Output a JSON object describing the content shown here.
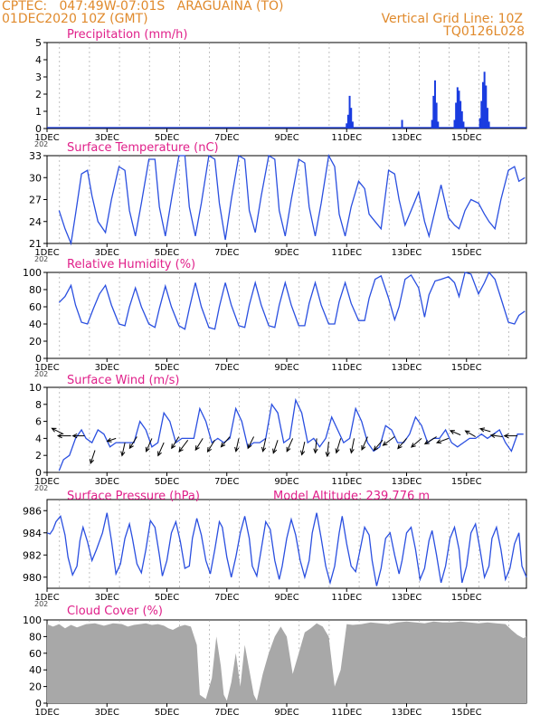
{
  "header": {
    "line1": "CPTEC:   047:49W-07:01S   ARAGUAINA (TO)",
    "line2": "01DEC2020 10Z (GMT)",
    "grid_note": "Vertical Grid Line: 10Z",
    "code": "TQ0126L028"
  },
  "colors": {
    "header": "#e08a2c",
    "title": "#e0208a",
    "line": "#2a4fe0",
    "bar": "#1a3ce0",
    "cloud": "#a8a8a8",
    "arrow": "#000000"
  },
  "x_axis": {
    "tick_labels": [
      "1DEC",
      "3DEC",
      "5DEC",
      "7DEC",
      "9DEC",
      "11DEC",
      "13DEC",
      "15DEC"
    ],
    "year_stub": "202"
  },
  "chart_data": [
    {
      "id": "precip",
      "type": "bar",
      "title": "Precipitation (mm/h)",
      "xlabel": "",
      "ylabel": "",
      "ylim": [
        0,
        5
      ],
      "yticks": [
        0,
        1,
        2,
        3,
        4,
        5
      ],
      "x_unit": "days since 01DEC 00Z",
      "x": [
        10.0,
        10.05,
        10.1,
        10.15,
        10.2,
        11.85,
        12.85,
        12.9,
        12.95,
        13.0,
        13.05,
        13.6,
        13.65,
        13.7,
        13.75,
        13.8,
        13.85,
        13.9,
        14.45,
        14.5,
        14.55,
        14.6,
        14.65,
        14.7,
        14.75
      ],
      "values": [
        0.3,
        0.8,
        1.9,
        1.2,
        0.4,
        0.5,
        0.5,
        1.9,
        2.8,
        1.5,
        0.4,
        0.5,
        1.5,
        2.4,
        2.2,
        1.6,
        1.0,
        0.4,
        0.6,
        1.6,
        2.7,
        3.3,
        2.5,
        1.2,
        0.4
      ]
    },
    {
      "id": "temp",
      "type": "line",
      "title": "Surface Temperature (nC)",
      "xlabel": "",
      "ylabel": "",
      "ylim": [
        21,
        33
      ],
      "yticks": [
        21,
        24,
        27,
        30,
        33
      ],
      "x_unit": "days since 01DEC 00Z",
      "x": [
        0.4,
        0.6,
        0.8,
        0.95,
        1.15,
        1.35,
        1.5,
        1.7,
        1.95,
        2.15,
        2.4,
        2.6,
        2.75,
        2.95,
        3.15,
        3.4,
        3.6,
        3.75,
        3.95,
        4.15,
        4.4,
        4.6,
        4.75,
        4.95,
        5.15,
        5.4,
        5.6,
        5.75,
        5.95,
        6.15,
        6.4,
        6.6,
        6.75,
        6.95,
        7.15,
        7.4,
        7.6,
        7.75,
        7.95,
        8.15,
        8.4,
        8.6,
        8.75,
        8.95,
        9.15,
        9.4,
        9.6,
        9.75,
        9.95,
        10.15,
        10.4,
        10.6,
        10.75,
        10.95,
        11.15,
        11.4,
        11.6,
        11.75,
        11.95,
        12.15,
        12.4,
        12.6,
        12.75,
        12.95,
        13.15,
        13.4,
        13.6,
        13.75,
        13.95,
        14.15,
        14.4,
        14.6,
        14.75,
        14.95,
        15.15,
        15.4,
        15.6,
        15.75,
        15.95
      ],
      "values": [
        25.5,
        23.0,
        21.0,
        25.0,
        30.5,
        31.0,
        27.5,
        24.0,
        22.5,
        27.0,
        31.5,
        31.0,
        25.5,
        22.0,
        26.5,
        32.5,
        32.5,
        26.0,
        22.0,
        27.0,
        33.0,
        33.0,
        26.0,
        22.0,
        26.5,
        33.0,
        32.5,
        26.5,
        21.5,
        27.0,
        33.0,
        32.5,
        25.5,
        22.5,
        27.5,
        33.0,
        32.5,
        25.5,
        22.0,
        27.0,
        32.5,
        32.0,
        26.0,
        22.0,
        26.5,
        33.0,
        31.5,
        25.0,
        22.0,
        26.0,
        29.5,
        28.5,
        25.0,
        24.0,
        23.0,
        31.0,
        30.5,
        27.0,
        23.5,
        25.5,
        28.0,
        24.0,
        22.0,
        25.5,
        29.0,
        24.5,
        23.5,
        23.0,
        25.5,
        27.0,
        26.5,
        25.0,
        24.0,
        23.0,
        27.0,
        31.0,
        31.5,
        29.5,
        30.0
      ]
    },
    {
      "id": "rh",
      "type": "line",
      "title": "Relative Humidity (%)",
      "xlabel": "",
      "ylabel": "",
      "ylim": [
        0,
        100
      ],
      "yticks": [
        0,
        20,
        40,
        60,
        80,
        100
      ],
      "x_unit": "days since 01DEC 00Z",
      "x": [
        0.4,
        0.6,
        0.8,
        0.95,
        1.15,
        1.35,
        1.55,
        1.75,
        1.95,
        2.15,
        2.4,
        2.6,
        2.75,
        2.95,
        3.15,
        3.4,
        3.6,
        3.75,
        3.95,
        4.15,
        4.4,
        4.6,
        4.75,
        4.95,
        5.15,
        5.4,
        5.6,
        5.75,
        5.95,
        6.15,
        6.4,
        6.6,
        6.75,
        6.95,
        7.15,
        7.4,
        7.6,
        7.75,
        7.95,
        8.15,
        8.4,
        8.6,
        8.75,
        8.95,
        9.15,
        9.4,
        9.6,
        9.75,
        9.95,
        10.15,
        10.4,
        10.6,
        10.75,
        10.95,
        11.15,
        11.4,
        11.6,
        11.75,
        11.95,
        12.15,
        12.4,
        12.6,
        12.75,
        12.95,
        13.15,
        13.4,
        13.6,
        13.75,
        13.95,
        14.15,
        14.4,
        14.6,
        14.75,
        14.95,
        15.15,
        15.4,
        15.6,
        15.75,
        15.95
      ],
      "values": [
        65,
        72,
        85,
        62,
        42,
        40,
        58,
        75,
        85,
        62,
        40,
        38,
        60,
        82,
        60,
        40,
        36,
        58,
        84,
        60,
        38,
        34,
        58,
        88,
        60,
        36,
        34,
        60,
        88,
        62,
        38,
        36,
        62,
        88,
        62,
        38,
        36,
        62,
        88,
        62,
        38,
        38,
        64,
        88,
        62,
        40,
        40,
        66,
        88,
        64,
        44,
        44,
        70,
        92,
        96,
        70,
        45,
        60,
        92,
        97,
        82,
        48,
        74,
        90,
        92,
        95,
        88,
        72,
        100,
        98,
        75,
        88,
        100,
        92,
        70,
        42,
        40,
        50,
        55
      ]
    },
    {
      "id": "wind",
      "type": "line",
      "title": "Surface Wind (m/s)",
      "xlabel": "",
      "ylabel": "",
      "ylim": [
        0,
        10
      ],
      "yticks": [
        0,
        2,
        4,
        6,
        8,
        10
      ],
      "x_unit": "days since 01DEC 00Z",
      "x": [
        0.4,
        0.55,
        0.75,
        0.95,
        1.15,
        1.3,
        1.5,
        1.7,
        1.9,
        2.1,
        2.3,
        2.5,
        2.7,
        2.9,
        3.1,
        3.3,
        3.5,
        3.7,
        3.9,
        4.1,
        4.3,
        4.5,
        4.7,
        4.9,
        5.1,
        5.3,
        5.5,
        5.7,
        5.9,
        6.1,
        6.3,
        6.5,
        6.7,
        6.9,
        7.1,
        7.3,
        7.5,
        7.7,
        7.9,
        8.1,
        8.3,
        8.5,
        8.7,
        8.9,
        9.1,
        9.3,
        9.5,
        9.7,
        9.9,
        10.1,
        10.3,
        10.5,
        10.7,
        10.9,
        11.1,
        11.3,
        11.5,
        11.7,
        11.9,
        12.1,
        12.3,
        12.5,
        12.7,
        12.9,
        13.1,
        13.3,
        13.5,
        13.7,
        13.9,
        14.1,
        14.3,
        14.5,
        14.7,
        14.9,
        15.1,
        15.3,
        15.5,
        15.7,
        15.9
      ],
      "values": [
        0.2,
        1.5,
        2.0,
        4.0,
        5.0,
        4.0,
        3.5,
        5.0,
        4.5,
        3.0,
        3.5,
        3.5,
        3.5,
        3.5,
        6.0,
        5.0,
        3.0,
        3.5,
        7.0,
        6.0,
        3.5,
        4.0,
        4.0,
        4.0,
        7.5,
        6.0,
        3.5,
        4.0,
        3.5,
        4.0,
        7.5,
        6.0,
        3.0,
        3.5,
        3.5,
        4.0,
        8.0,
        7.0,
        3.5,
        4.0,
        8.5,
        7.0,
        3.5,
        4.0,
        3.0,
        4.0,
        6.5,
        5.0,
        3.5,
        4.0,
        7.5,
        6.0,
        3.5,
        2.5,
        3.0,
        5.5,
        5.0,
        3.5,
        3.5,
        4.5,
        6.5,
        5.5,
        3.5,
        4.0,
        4.0,
        5.0,
        3.5,
        3.0,
        3.5,
        4.0,
        4.0,
        4.5,
        4.0,
        4.5,
        5.0,
        3.5,
        2.5,
        4.5,
        4.5
      ],
      "arrows": {
        "x": [
          0.55,
          0.8,
          1.25,
          1.6,
          2.3,
          2.6,
          3.0,
          3.5,
          3.9,
          4.4,
          4.7,
          5.2,
          5.6,
          6.1,
          6.4,
          6.9,
          7.3,
          7.7,
          8.2,
          8.6,
          9.0,
          9.4,
          9.8,
          10.25,
          10.7,
          11.2,
          11.6,
          12.0,
          12.5,
          13.0,
          13.4,
          13.8,
          14.3,
          14.8,
          15.2,
          15.7
        ],
        "y": [
          4.5,
          4.3,
          4.3,
          2.6,
          4.0,
          3.5,
          4.2,
          4.0,
          3.5,
          4.2,
          3.8,
          4.0,
          3.8,
          4.2,
          4.0,
          4.2,
          4.0,
          3.8,
          4.0,
          3.6,
          4.0,
          3.6,
          4.0,
          4.0,
          4.2,
          3.8,
          4.2,
          4.0,
          4.0,
          4.2,
          4.0,
          4.4,
          4.2,
          4.8,
          4.2,
          4.3
        ],
        "u": [
          -0.8,
          -0.9,
          -0.8,
          -0.3,
          -0.6,
          -0.2,
          -0.5,
          -0.4,
          -0.4,
          -0.5,
          -0.6,
          -0.5,
          -0.5,
          -0.6,
          -0.2,
          -0.4,
          -0.2,
          -0.3,
          -0.4,
          -0.2,
          -0.1,
          -0.1,
          -0.3,
          -0.2,
          -0.4,
          -0.6,
          -0.8,
          -0.6,
          -0.7,
          -0.8,
          -0.8,
          -0.7,
          -0.7,
          -0.7,
          -0.8,
          -0.9
        ],
        "v": [
          0.4,
          0.0,
          0.0,
          -0.9,
          -0.2,
          -0.9,
          -0.8,
          -0.9,
          -0.9,
          -0.8,
          -0.8,
          -0.8,
          -0.8,
          -0.7,
          -0.9,
          -0.8,
          -0.9,
          -0.9,
          -0.9,
          -0.9,
          -1.0,
          -1.0,
          -1.0,
          -1.0,
          -0.9,
          -0.7,
          -0.6,
          -0.7,
          -0.6,
          -0.5,
          -0.3,
          0.3,
          0.4,
          0.2,
          0.1,
          0.0
        ]
      }
    },
    {
      "id": "press",
      "type": "line",
      "title": "Surface Pressure (hPa)",
      "subtitle": "Model Altitude: 239.776  m",
      "xlabel": "",
      "ylabel": "",
      "ylim": [
        979,
        987
      ],
      "yticks": [
        980,
        982,
        984,
        986
      ],
      "x_unit": "days since 01DEC 00Z",
      "x": [
        0.0,
        0.1,
        0.2,
        0.3,
        0.45,
        0.6,
        0.7,
        0.85,
        1.0,
        1.1,
        1.2,
        1.35,
        1.5,
        1.65,
        1.85,
        2.0,
        2.15,
        2.3,
        2.45,
        2.6,
        2.75,
        2.85,
        3.0,
        3.15,
        3.3,
        3.45,
        3.6,
        3.75,
        3.85,
        4.0,
        4.15,
        4.3,
        4.45,
        4.6,
        4.75,
        4.85,
        5.0,
        5.15,
        5.3,
        5.45,
        5.6,
        5.75,
        5.85,
        6.0,
        6.15,
        6.3,
        6.45,
        6.6,
        6.75,
        6.85,
        7.0,
        7.15,
        7.3,
        7.45,
        7.6,
        7.75,
        7.85,
        8.0,
        8.15,
        8.3,
        8.45,
        8.6,
        8.75,
        8.85,
        9.0,
        9.15,
        9.3,
        9.45,
        9.6,
        9.75,
        9.85,
        10.0,
        10.15,
        10.3,
        10.45,
        10.6,
        10.75,
        10.85,
        11.0,
        11.15,
        11.3,
        11.45,
        11.6,
        11.75,
        11.85,
        12.0,
        12.15,
        12.3,
        12.45,
        12.6,
        12.75,
        12.85,
        13.0,
        13.15,
        13.3,
        13.45,
        13.6,
        13.75,
        13.85,
        14.0,
        14.15,
        14.3,
        14.45,
        14.6,
        14.75,
        14.85,
        15.0,
        15.15,
        15.3,
        15.45,
        15.6,
        15.75,
        15.85,
        16.0
      ],
      "values": [
        984.0,
        983.9,
        984.3,
        985.0,
        985.5,
        983.8,
        981.8,
        980.2,
        981.0,
        983.3,
        984.5,
        983.2,
        981.5,
        982.5,
        984.0,
        985.8,
        983.3,
        980.3,
        981.2,
        983.5,
        984.8,
        983.5,
        981.2,
        980.4,
        982.5,
        985.1,
        984.5,
        982.0,
        980.1,
        981.5,
        984.0,
        985.0,
        983.2,
        980.8,
        981.0,
        983.5,
        985.3,
        983.8,
        981.5,
        980.3,
        982.5,
        985.0,
        984.5,
        981.8,
        980.0,
        981.8,
        984.0,
        985.5,
        983.5,
        981.0,
        980.1,
        982.5,
        985.0,
        984.3,
        981.5,
        979.8,
        981.0,
        983.5,
        985.2,
        983.8,
        981.5,
        980.0,
        981.5,
        984.0,
        985.8,
        983.5,
        981.0,
        979.5,
        981.0,
        984.0,
        985.5,
        983.0,
        981.0,
        980.5,
        982.5,
        984.5,
        983.8,
        981.5,
        979.2,
        980.8,
        983.5,
        984.0,
        982.0,
        980.3,
        981.5,
        984.0,
        984.5,
        982.5,
        979.8,
        980.8,
        983.3,
        984.2,
        982.0,
        979.5,
        981.0,
        983.5,
        984.5,
        982.5,
        979.5,
        981.0,
        984.0,
        984.8,
        982.5,
        980.0,
        981.0,
        983.5,
        984.5,
        982.5,
        979.8,
        980.8,
        983.0,
        984.0,
        981.0,
        980.0
      ]
    },
    {
      "id": "cloud",
      "type": "area",
      "title": "Cloud Cover (%)",
      "xlabel": "",
      "ylabel": "",
      "ylim": [
        0,
        100
      ],
      "yticks": [
        0,
        20,
        40,
        60,
        80,
        100
      ],
      "x_unit": "days since 01DEC 00Z",
      "x": [
        0.0,
        0.2,
        0.4,
        0.6,
        0.8,
        1.0,
        1.3,
        1.6,
        1.9,
        2.2,
        2.5,
        2.7,
        2.9,
        3.1,
        3.3,
        3.5,
        3.7,
        3.9,
        4.05,
        4.2,
        4.4,
        4.6,
        4.8,
        5.0,
        5.1,
        5.3,
        5.5,
        5.65,
        5.8,
        5.9,
        6.0,
        6.15,
        6.3,
        6.45,
        6.6,
        6.75,
        6.9,
        7.0,
        7.2,
        7.4,
        7.6,
        7.8,
        8.0,
        8.2,
        8.4,
        8.6,
        8.8,
        9.0,
        9.2,
        9.4,
        9.6,
        9.8,
        10.0,
        10.2,
        10.5,
        10.8,
        11.1,
        11.4,
        11.7,
        12.0,
        12.3,
        12.6,
        12.9,
        13.2,
        13.5,
        13.8,
        14.1,
        14.4,
        14.7,
        15.0,
        15.3,
        15.5,
        15.7,
        15.9,
        16.0
      ],
      "values": [
        95,
        92,
        95,
        90,
        94,
        91,
        95,
        96,
        93,
        96,
        95,
        92,
        94,
        95,
        96,
        94,
        95,
        93,
        90,
        88,
        92,
        94,
        92,
        70,
        10,
        5,
        30,
        80,
        45,
        10,
        3,
        25,
        60,
        20,
        70,
        40,
        10,
        3,
        35,
        60,
        80,
        92,
        80,
        35,
        60,
        85,
        90,
        96,
        92,
        80,
        20,
        40,
        95,
        94,
        95,
        97,
        96,
        95,
        97,
        98,
        97,
        96,
        98,
        97,
        97,
        98,
        97,
        96,
        97,
        96,
        95,
        88,
        82,
        78,
        80
      ]
    }
  ]
}
